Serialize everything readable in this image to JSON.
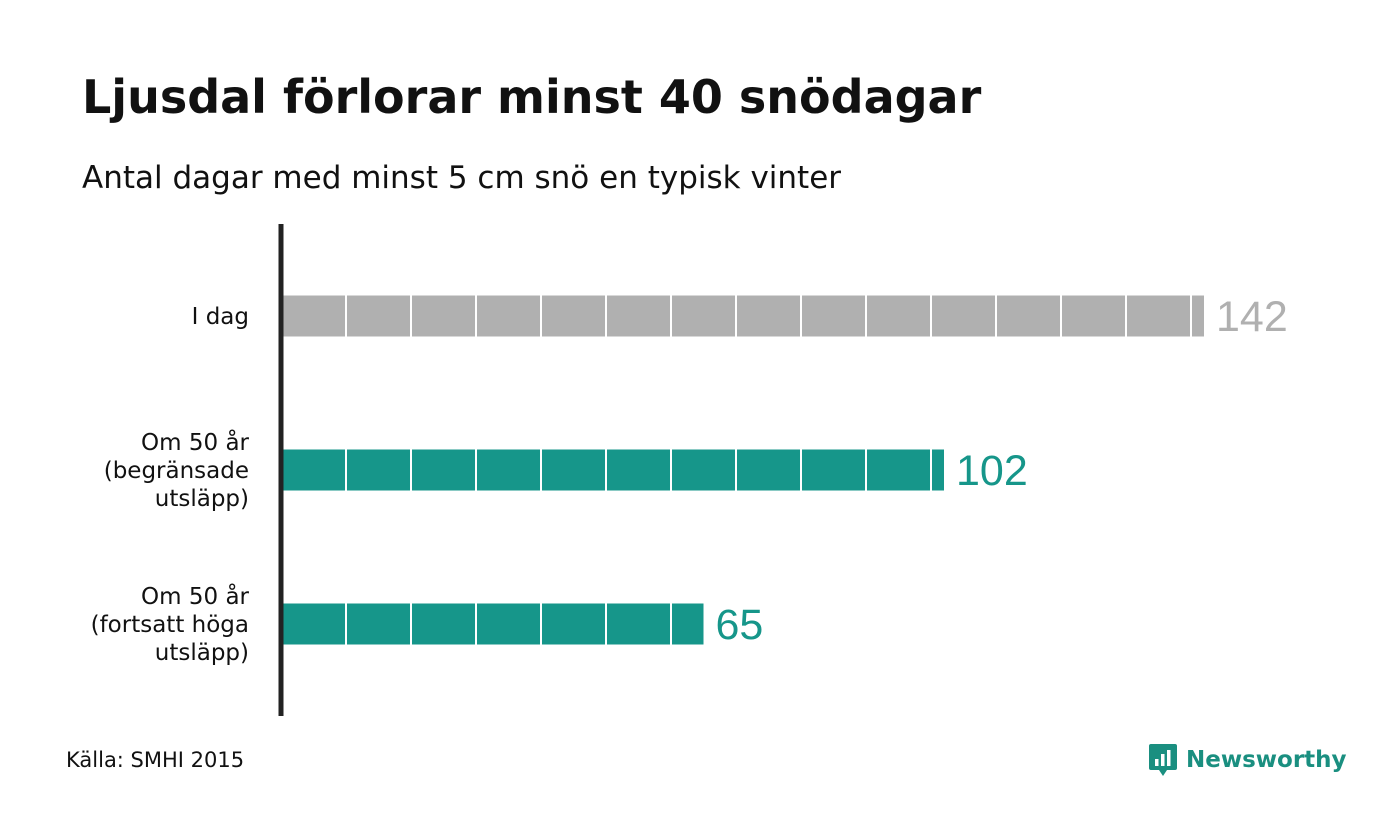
{
  "header": {
    "title": "Ljusdal förlorar minst 40 snödagar",
    "subtitle": "Antal dagar med minst 5 cm snö en typisk vinter"
  },
  "chart_data": {
    "type": "bar",
    "orientation": "horizontal",
    "title": "Ljusdal förlorar minst 40 snödagar",
    "subtitle": "Antal dagar med minst 5 cm snö en typisk vinter",
    "categories": [
      [
        "I dag"
      ],
      [
        "Om 50 år",
        "(begränsade",
        "utsläpp)"
      ],
      [
        "Om 50 år",
        "(fortsatt höga",
        "utsläpp)"
      ]
    ],
    "values": [
      142,
      102,
      65
    ],
    "value_labels": [
      "142",
      "102",
      "65"
    ],
    "colors": [
      "#b0b0b0",
      "#16968a",
      "#16968a"
    ],
    "label_colors": [
      "#b0b0b0",
      "#16968a",
      "#16968a"
    ],
    "segment_size": 10,
    "xlim": [
      0,
      150
    ],
    "grid": false,
    "legend": "none"
  },
  "footer": {
    "source": "Källa: SMHI 2015",
    "brand": "Newsworthy",
    "brand_color": "#1a8f80",
    "brand_icon": "bar-chart-speech-bubble-icon"
  }
}
